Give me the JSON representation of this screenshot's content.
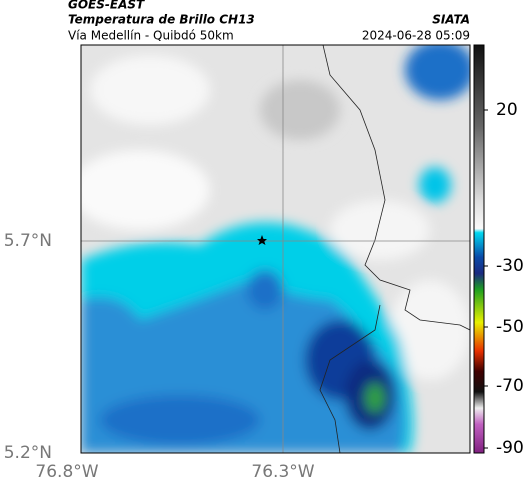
{
  "header": {
    "source": "GOES-EAST",
    "title": "Temperatura de Brillo CH13",
    "agency": "SIATA",
    "subtitle": "Vía Medellín - Quibdó 50km",
    "timestamp": "2024-06-28 05:09"
  },
  "map": {
    "lat_labels": [
      "5.7°N",
      "5.2°N"
    ],
    "lon_labels": [
      "76.8°W",
      "76.3°W"
    ]
  },
  "colorbar": {
    "ticks": [
      20,
      -30,
      -50,
      -70,
      -90
    ]
  }
}
